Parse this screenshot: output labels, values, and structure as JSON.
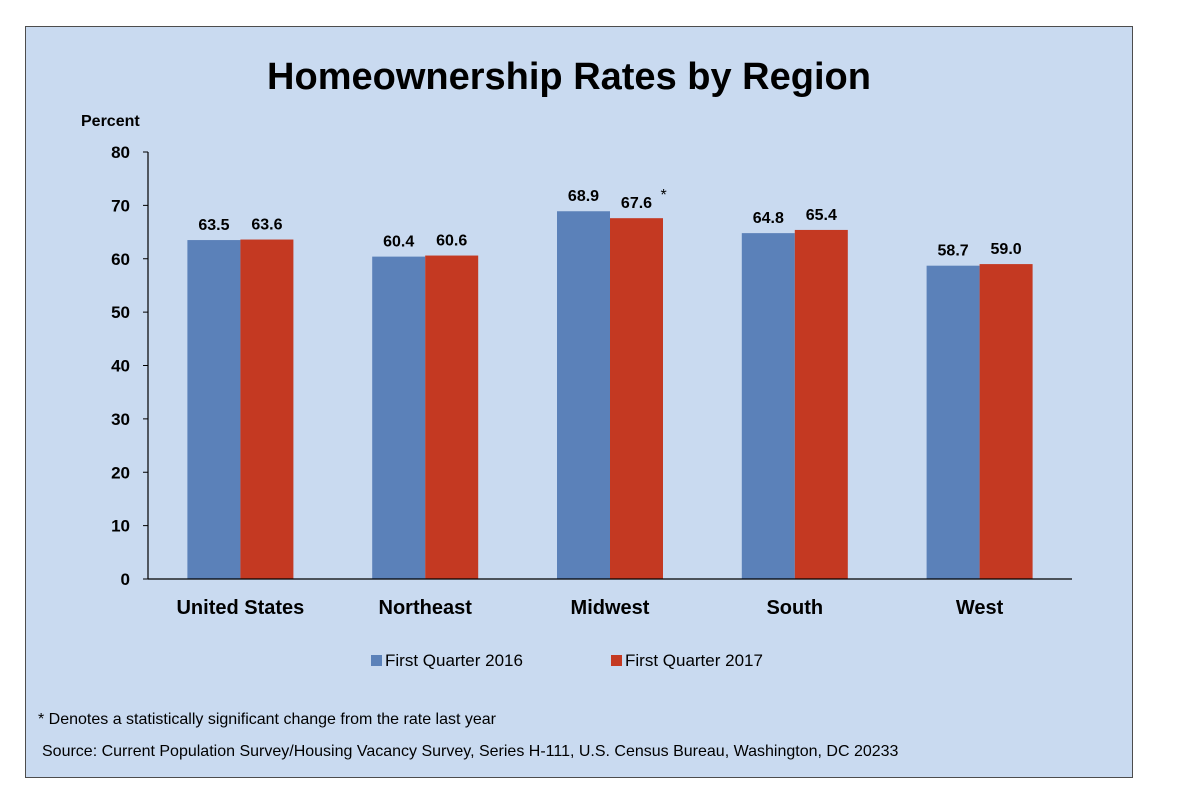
{
  "chart_data": {
    "type": "bar",
    "title": "Homeownership Rates by Region",
    "ylabel": "Percent",
    "xlabel": "",
    "ylim": [
      0,
      80
    ],
    "yticks": [
      0,
      10,
      20,
      30,
      40,
      50,
      60,
      70,
      80
    ],
    "grid": false,
    "legend_position": "bottom",
    "categories": [
      "United States",
      "Northeast",
      "Midwest",
      "South",
      "West"
    ],
    "series": [
      {
        "name": "First Quarter 2016",
        "color": "#5b81b9",
        "values": [
          63.5,
          60.4,
          68.9,
          64.8,
          58.7
        ],
        "labels": [
          "63.5",
          "60.4",
          "68.9",
          "64.8",
          "58.7"
        ]
      },
      {
        "name": "First Quarter 2017",
        "color": "#c43922",
        "values": [
          63.6,
          60.6,
          67.6,
          65.4,
          59.0
        ],
        "labels": [
          "63.6",
          "60.6",
          "67.6",
          "65.4",
          "59.0"
        ]
      }
    ],
    "significance": {
      "series_index": 1,
      "category_index": 2,
      "marker": "*"
    },
    "footnote": "* Denotes a statistically significant change from the rate last year",
    "source": "Source: Current Population Survey/Housing Vacancy Survey, Series H-111, U.S. Census Bureau, Washington, DC 20233"
  }
}
